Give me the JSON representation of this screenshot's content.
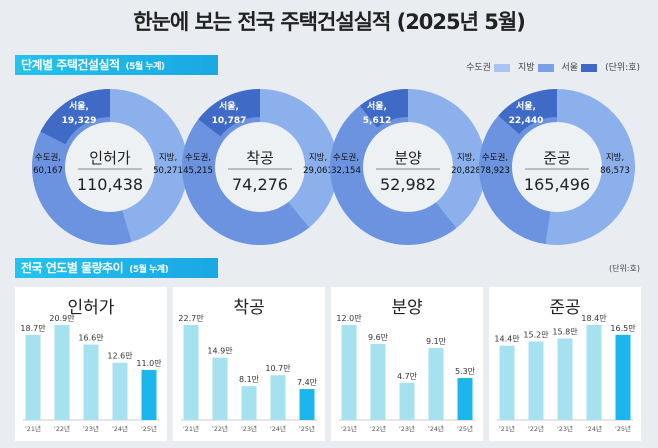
{
  "title": "한눈에 보는 전국 주택건설실적 (2025년 5월)",
  "section1": {
    "label": "단계별 주택건설실적",
    "note": "(5월 누계)"
  },
  "legend": {
    "items": [
      {
        "label": "수도권",
        "color": "#a9c4f2"
      },
      {
        "label": "지방",
        "color": "#7a9fe4"
      },
      {
        "label": "서울",
        "color": "#3e68c4"
      }
    ],
    "unit": "(단위:호)"
  },
  "section2": {
    "label": "전국 연도별 물량추이",
    "note": "(5월 누계)",
    "unit": "(단위:호)"
  },
  "colors": {
    "local": "#8cb0ec",
    "capital": "#6b93df",
    "seoul": "#3f6bc7",
    "bar": "#a6e1ef",
    "bar_current": "#1bb7ec"
  },
  "chart_data": [
    {
      "type": "pie",
      "stage": "인허가",
      "total": "110,438",
      "segments": [
        {
          "name": "지방",
          "label": "지방,",
          "value": 50271,
          "text": "50,271"
        },
        {
          "name": "수도권",
          "label": "수도권,",
          "value": 60167,
          "text": "60,167"
        },
        {
          "name": "서울",
          "label": "서울,",
          "value": 19329,
          "text": "19,329"
        }
      ]
    },
    {
      "type": "pie",
      "stage": "착공",
      "total": "74,276",
      "segments": [
        {
          "name": "지방",
          "label": "지방,",
          "value": 29061,
          "text": "29,061"
        },
        {
          "name": "수도권",
          "label": "수도권,",
          "value": 45215,
          "text": "45,215"
        },
        {
          "name": "서울",
          "label": "서울,",
          "value": 10787,
          "text": "10,787"
        }
      ]
    },
    {
      "type": "pie",
      "stage": "분양",
      "total": "52,982",
      "segments": [
        {
          "name": "지방",
          "label": "지방,",
          "value": 20828,
          "text": "20,828"
        },
        {
          "name": "수도권",
          "label": "수도권,",
          "value": 32154,
          "text": "32,154"
        },
        {
          "name": "서울",
          "label": "서울,",
          "value": 5612,
          "text": "5,612"
        }
      ]
    },
    {
      "type": "pie",
      "stage": "준공",
      "total": "165,496",
      "segments": [
        {
          "name": "지방",
          "label": "지방,",
          "value": 86573,
          "text": "86,573"
        },
        {
          "name": "수도권",
          "label": "수도권,",
          "value": 78923,
          "text": "78,923"
        },
        {
          "name": "서울",
          "label": "서울,",
          "value": 22440,
          "text": "22,440"
        }
      ]
    },
    {
      "type": "bar",
      "title": "인허가",
      "categories": [
        "'21년",
        "'22년",
        "'23년",
        "'24년",
        "'25년"
      ],
      "values": [
        18.7,
        20.9,
        16.6,
        12.6,
        11.0
      ],
      "labels": [
        "18.7만",
        "20.9만",
        "16.6만",
        "12.6만",
        "11.0만"
      ]
    },
    {
      "type": "bar",
      "title": "착공",
      "categories": [
        "'21년",
        "'22년",
        "'23년",
        "'24년",
        "'25년"
      ],
      "values": [
        22.7,
        14.9,
        8.1,
        10.7,
        7.4
      ],
      "labels": [
        "22.7만",
        "14.9만",
        "8.1만",
        "10.7만",
        "7.4만"
      ]
    },
    {
      "type": "bar",
      "title": "분양",
      "categories": [
        "'21년",
        "'22년",
        "'23년",
        "'24년",
        "'25년"
      ],
      "values": [
        12.0,
        9.6,
        4.7,
        9.1,
        5.3
      ],
      "labels": [
        "12.0만",
        "9.6만",
        "4.7만",
        "9.1만",
        "5.3만"
      ]
    },
    {
      "type": "bar",
      "title": "준공",
      "categories": [
        "'21년",
        "'22년",
        "'23년",
        "'24년",
        "'25년"
      ],
      "values": [
        14.4,
        15.2,
        15.8,
        18.4,
        16.5
      ],
      "labels": [
        "14.4만",
        "15.2만",
        "15.8만",
        "18.4만",
        "16.5만"
      ]
    }
  ]
}
